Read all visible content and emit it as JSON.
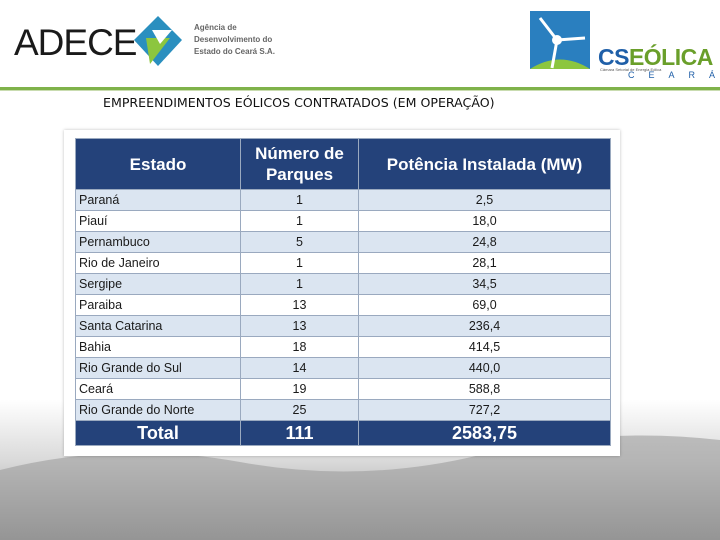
{
  "header": {
    "adece": {
      "name": "ADECE",
      "subtitle": [
        "Agência de",
        "Desenvolvimento do",
        "Estado do Ceará S.A."
      ]
    },
    "cseolica": {
      "name_part1": "CS",
      "name_part2": "EÓLICA",
      "tagline": "Câmara Setorial de Energia Eólica",
      "region": "CEARÁ"
    }
  },
  "title": "EMPREENDIMENTOS EÓLICOS CONTRATADOS (EM OPERAÇÃO)",
  "table": {
    "columns": [
      "Estado",
      "Número de Parques",
      "Potência Instalada (MW)"
    ],
    "rows": [
      [
        "Paraná",
        "1",
        "2,5"
      ],
      [
        "Piauí",
        "1",
        "18,0"
      ],
      [
        "Pernambuco",
        "5",
        "24,8"
      ],
      [
        "Rio de Janeiro",
        "1",
        "28,1"
      ],
      [
        "Sergipe",
        "1",
        "34,5"
      ],
      [
        "Paraiba",
        "13",
        "69,0"
      ],
      [
        "Santa Catarina",
        "13",
        "236,4"
      ],
      [
        "Bahia",
        "18",
        "414,5"
      ],
      [
        "Rio Grande do Sul",
        "14",
        "440,0"
      ],
      [
        "Ceará",
        "19",
        "588,8"
      ],
      [
        "Rio Grande do Norte",
        "25",
        "727,2"
      ]
    ],
    "total": [
      "Total",
      "111",
      "2583,75"
    ]
  }
}
